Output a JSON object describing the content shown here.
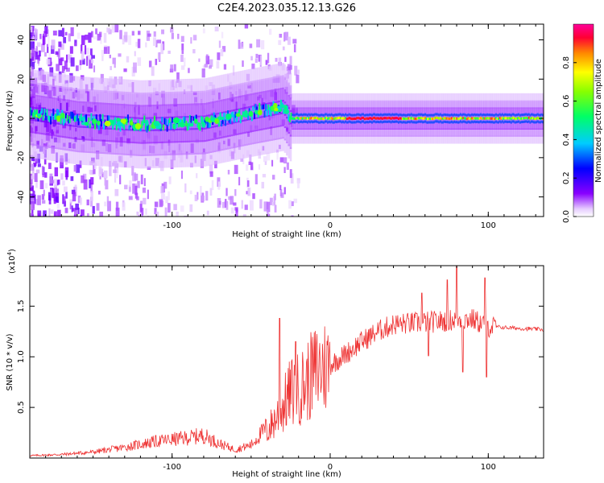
{
  "title": "C2E4.2023.035.12.13.G26",
  "chart_data": [
    {
      "type": "heatmap",
      "xlabel": "Height of straight line (km)",
      "ylabel": "Frequency (Hz)",
      "xlim": [
        -190,
        135
      ],
      "ylim": [
        -50,
        48
      ],
      "xticks": [
        -100,
        0,
        100
      ],
      "xtick_labels": [
        "-100",
        "0",
        "100"
      ],
      "yticks": [
        -40,
        -20,
        0,
        20,
        40
      ],
      "ytick_labels": [
        "-40",
        "-20",
        "0",
        "20",
        "40"
      ],
      "colorbar": {
        "label": "Normalized spectral amplitude",
        "range": [
          0,
          1
        ],
        "ticks": [
          0.0,
          0.2,
          0.4,
          0.6,
          0.8
        ],
        "tick_labels": [
          "0.0",
          "0.2",
          "0.4",
          "0.6",
          "0.8"
        ]
      },
      "ridge": {
        "description_points": [
          [
            -185,
            2
          ],
          [
            -160,
            -1
          ],
          [
            -120,
            -3
          ],
          [
            -80,
            -2
          ],
          [
            -50,
            3
          ],
          [
            -30,
            6
          ],
          [
            -25,
            0
          ],
          [
            0,
            0
          ],
          [
            130,
            0
          ]
        ],
        "peak_segment_km": [
          10,
          45
        ],
        "peak_amplitude": 0.95
      }
    },
    {
      "type": "line",
      "xlabel": "Height of straight line (km)",
      "ylabel": "SNR (10 * v/v)",
      "scale_label": "(x10",
      "scale_exp": "4",
      "scale_close": ")",
      "xlim": [
        -190,
        135
      ],
      "ylim": [
        0,
        19000
      ],
      "xticks": [
        -100,
        0,
        100
      ],
      "xtick_labels": [
        "-100",
        "0",
        "100"
      ],
      "yticks": [
        5000,
        10000,
        15000
      ],
      "ytick_labels": [
        "0.5",
        "1.0",
        "1.5"
      ],
      "line_color": "#ee3333",
      "series": [
        {
          "name": "SNR",
          "x": [
            -190,
            -170,
            -150,
            -130,
            -110,
            -90,
            -80,
            -70,
            -60,
            -50,
            -40,
            -30,
            -25,
            -20,
            -15,
            -10,
            -5,
            0,
            10,
            20,
            30,
            40,
            50,
            60,
            70,
            80,
            90,
            100,
            110,
            120,
            135
          ],
          "y": [
            200,
            300,
            500,
            900,
            1400,
            1700,
            1900,
            1200,
            700,
            1100,
            2600,
            5000,
            6500,
            6800,
            7500,
            8500,
            9000,
            9200,
            10300,
            11500,
            12500,
            13200,
            13300,
            13400,
            13500,
            13700,
            13700,
            13000,
            12900,
            12800,
            12700
          ]
        }
      ],
      "spikes": [
        [
          -32,
          13800
        ],
        [
          -22,
          11500
        ],
        [
          58,
          16300
        ],
        [
          62,
          10100
        ],
        [
          74,
          17600
        ],
        [
          80,
          19000
        ],
        [
          84,
          8500
        ],
        [
          98,
          17800
        ],
        [
          99,
          8000
        ]
      ]
    }
  ]
}
